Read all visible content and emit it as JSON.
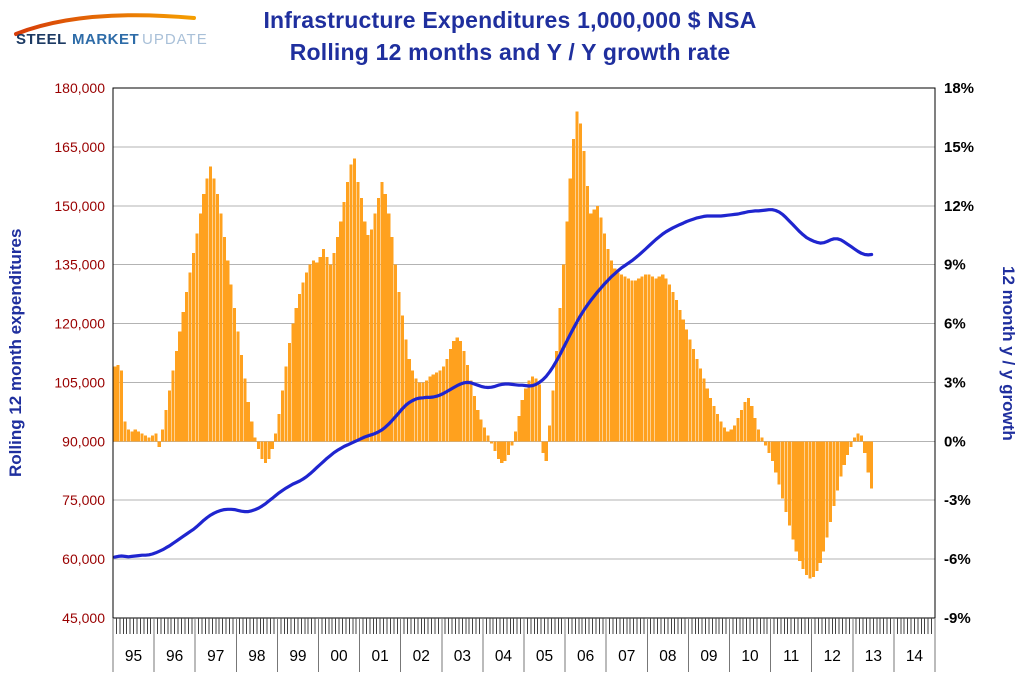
{
  "logo": {
    "steel": "STEEL",
    "market": "MARKET",
    "update": "UPDATE",
    "steel_color": "#1c3a63",
    "market_color": "#2e6ca8",
    "update_color": "#a9c0d8",
    "swoosh_color_start": "#d63c09",
    "swoosh_color_end": "#f59e00"
  },
  "header": {
    "title_line1": "Infrastructure Expenditures 1,000,000 $ NSA",
    "title_line2": "Rolling 12 months and Y / Y growth rate",
    "title_color": "#1f2f9e"
  },
  "chart_data": {
    "type": "combo_bar_line",
    "title": "Infrastructure Expenditures 1,000,000 $ NSA Rolling 12 months and Y / Y growth rate",
    "grid": {
      "horizontal": true,
      "vertical": false,
      "color": "#b3b3b3"
    },
    "left_axis": {
      "label": "Rolling 12 month expenditures",
      "min": 45000,
      "max": 180000,
      "step": 15000,
      "tick_labels": [
        "180,000",
        "165,000",
        "150,000",
        "135,000",
        "120,000",
        "105,000",
        "90,000",
        "75,000",
        "60,000",
        "45,000"
      ],
      "label_color": "#1f2f9e",
      "tick_color": "#990000"
    },
    "right_axis": {
      "label": "12 month y / y growth",
      "min": -9,
      "max": 18,
      "step": 3,
      "unit": "%",
      "tick_labels": [
        "18%",
        "15%",
        "12%",
        "9%",
        "6%",
        "3%",
        "0%",
        "-3%",
        "-6%",
        "-9%"
      ],
      "label_color": "#1f2f9e",
      "tick_color": "#000000"
    },
    "x_axis": {
      "start_year": 1995,
      "end_year": 2014,
      "tick_years": [
        "95",
        "96",
        "97",
        "98",
        "99",
        "00",
        "01",
        "02",
        "03",
        "04",
        "05",
        "06",
        "07",
        "08",
        "09",
        "10",
        "11",
        "12",
        "13",
        "14"
      ]
    },
    "series": [
      {
        "name": "Rolling 12 month expenditures",
        "type": "line",
        "axis": "left",
        "color": "#1f25cf",
        "start": "1995-01",
        "frequency": "monthly",
        "values": [
          60500,
          60700,
          60800,
          60700,
          60600,
          60700,
          60800,
          60900,
          61000,
          61000,
          61100,
          61300,
          61600,
          62000,
          62400,
          62900,
          63400,
          64000,
          64600,
          65200,
          65800,
          66400,
          67000,
          67600,
          68300,
          69100,
          69900,
          70600,
          71200,
          71700,
          72100,
          72400,
          72600,
          72700,
          72700,
          72600,
          72400,
          72200,
          72100,
          72100,
          72300,
          72600,
          73000,
          73500,
          74100,
          74800,
          75500,
          76200,
          76900,
          77500,
          78100,
          78600,
          79100,
          79500,
          79900,
          80400,
          81000,
          81700,
          82500,
          83300,
          84100,
          84900,
          85700,
          86400,
          87100,
          87700,
          88200,
          88700,
          89100,
          89500,
          89900,
          90300,
          90700,
          91100,
          91400,
          91700,
          92000,
          92400,
          92900,
          93600,
          94400,
          95300,
          96300,
          97300,
          98300,
          99200,
          99900,
          100400,
          100800,
          101000,
          101100,
          101200,
          101200,
          101300,
          101500,
          101800,
          102200,
          102700,
          103200,
          103700,
          104200,
          104600,
          104900,
          105000,
          104900,
          104600,
          104300,
          104000,
          103800,
          103700,
          103800,
          104000,
          104300,
          104500,
          104600,
          104600,
          104500,
          104400,
          104300,
          104300,
          104200,
          104100,
          104200,
          104500,
          105000,
          105700,
          106600,
          107700,
          109000,
          110500,
          112100,
          113800,
          115500,
          117200,
          118900,
          120500,
          122000,
          123400,
          124700,
          125900,
          127000,
          128100,
          129100,
          130100,
          131000,
          131900,
          132700,
          133500,
          134200,
          134800,
          135400,
          136000,
          136700,
          137400,
          138200,
          139000,
          139800,
          140600,
          141400,
          142100,
          142800,
          143400,
          143900,
          144400,
          144800,
          145200,
          145600,
          146000,
          146300,
          146600,
          146900,
          147100,
          147300,
          147400,
          147400,
          147400,
          147400,
          147400,
          147500,
          147600,
          147700,
          147800,
          147900,
          148100,
          148300,
          148500,
          148600,
          148700,
          148700,
          148800,
          148900,
          149000,
          149000,
          148800,
          148400,
          147800,
          147000,
          146100,
          145200,
          144300,
          143400,
          142600,
          141900,
          141400,
          141000,
          140700,
          140500,
          140600,
          140900,
          141300,
          141600,
          141600,
          141300,
          140800,
          140200,
          139600,
          139000,
          138400,
          137900,
          137600,
          137500,
          137600
        ]
      },
      {
        "name": "12 month y / y growth",
        "type": "bar",
        "axis": "right",
        "unit": "%",
        "color": "#ffa11e",
        "start": "1995-01",
        "frequency": "monthly",
        "values": [
          3.8,
          3.9,
          3.6,
          1.0,
          0.6,
          0.5,
          0.6,
          0.5,
          0.4,
          0.3,
          0.2,
          0.3,
          0.4,
          -0.3,
          0.6,
          1.6,
          2.6,
          3.6,
          4.6,
          5.6,
          6.6,
          7.6,
          8.6,
          9.6,
          10.6,
          11.6,
          12.6,
          13.4,
          14.0,
          13.4,
          12.6,
          11.6,
          10.4,
          9.2,
          8.0,
          6.8,
          5.6,
          4.4,
          3.2,
          2.0,
          1.0,
          0.2,
          -0.4,
          -0.9,
          -1.1,
          -0.9,
          -0.4,
          0.4,
          1.4,
          2.6,
          3.8,
          5.0,
          6.0,
          6.8,
          7.5,
          8.1,
          8.6,
          9.0,
          9.2,
          9.1,
          9.4,
          9.8,
          9.4,
          9.0,
          9.6,
          10.4,
          11.2,
          12.2,
          13.2,
          14.1,
          14.4,
          13.2,
          12.4,
          11.2,
          10.5,
          10.8,
          11.6,
          12.4,
          13.2,
          12.6,
          11.6,
          10.4,
          9.0,
          7.6,
          6.4,
          5.2,
          4.2,
          3.6,
          3.2,
          3.0,
          3.0,
          3.1,
          3.3,
          3.4,
          3.5,
          3.6,
          3.8,
          4.2,
          4.7,
          5.1,
          5.3,
          5.1,
          4.6,
          3.9,
          3.1,
          2.3,
          1.6,
          1.1,
          0.7,
          0.3,
          -0.1,
          -0.5,
          -0.9,
          -1.1,
          -1.0,
          -0.7,
          -0.2,
          0.5,
          1.3,
          2.1,
          2.7,
          3.1,
          3.3,
          3.2,
          2.9,
          -0.6,
          -1.0,
          0.8,
          2.6,
          4.6,
          6.8,
          9.0,
          11.2,
          13.4,
          15.4,
          16.8,
          16.2,
          14.8,
          13.0,
          11.6,
          11.8,
          12.0,
          11.4,
          10.6,
          9.8,
          9.2,
          8.8,
          8.6,
          8.5,
          8.4,
          8.3,
          8.2,
          8.2,
          8.3,
          8.4,
          8.5,
          8.5,
          8.4,
          8.3,
          8.4,
          8.5,
          8.3,
          8.0,
          7.6,
          7.2,
          6.7,
          6.2,
          5.7,
          5.2,
          4.7,
          4.2,
          3.7,
          3.2,
          2.7,
          2.2,
          1.8,
          1.4,
          1.0,
          0.7,
          0.5,
          0.6,
          0.8,
          1.2,
          1.6,
          2.0,
          2.2,
          1.8,
          1.2,
          0.6,
          0.2,
          -0.2,
          -0.6,
          -1.0,
          -1.6,
          -2.2,
          -2.9,
          -3.6,
          -4.3,
          -5.0,
          -5.6,
          -6.1,
          -6.5,
          -6.8,
          -7.0,
          -6.9,
          -6.6,
          -6.2,
          -5.6,
          -4.9,
          -4.1,
          -3.3,
          -2.5,
          -1.8,
          -1.2,
          -0.7,
          -0.3,
          0.2,
          0.4,
          0.3,
          -0.6,
          -1.6,
          -2.4
        ]
      }
    ]
  }
}
